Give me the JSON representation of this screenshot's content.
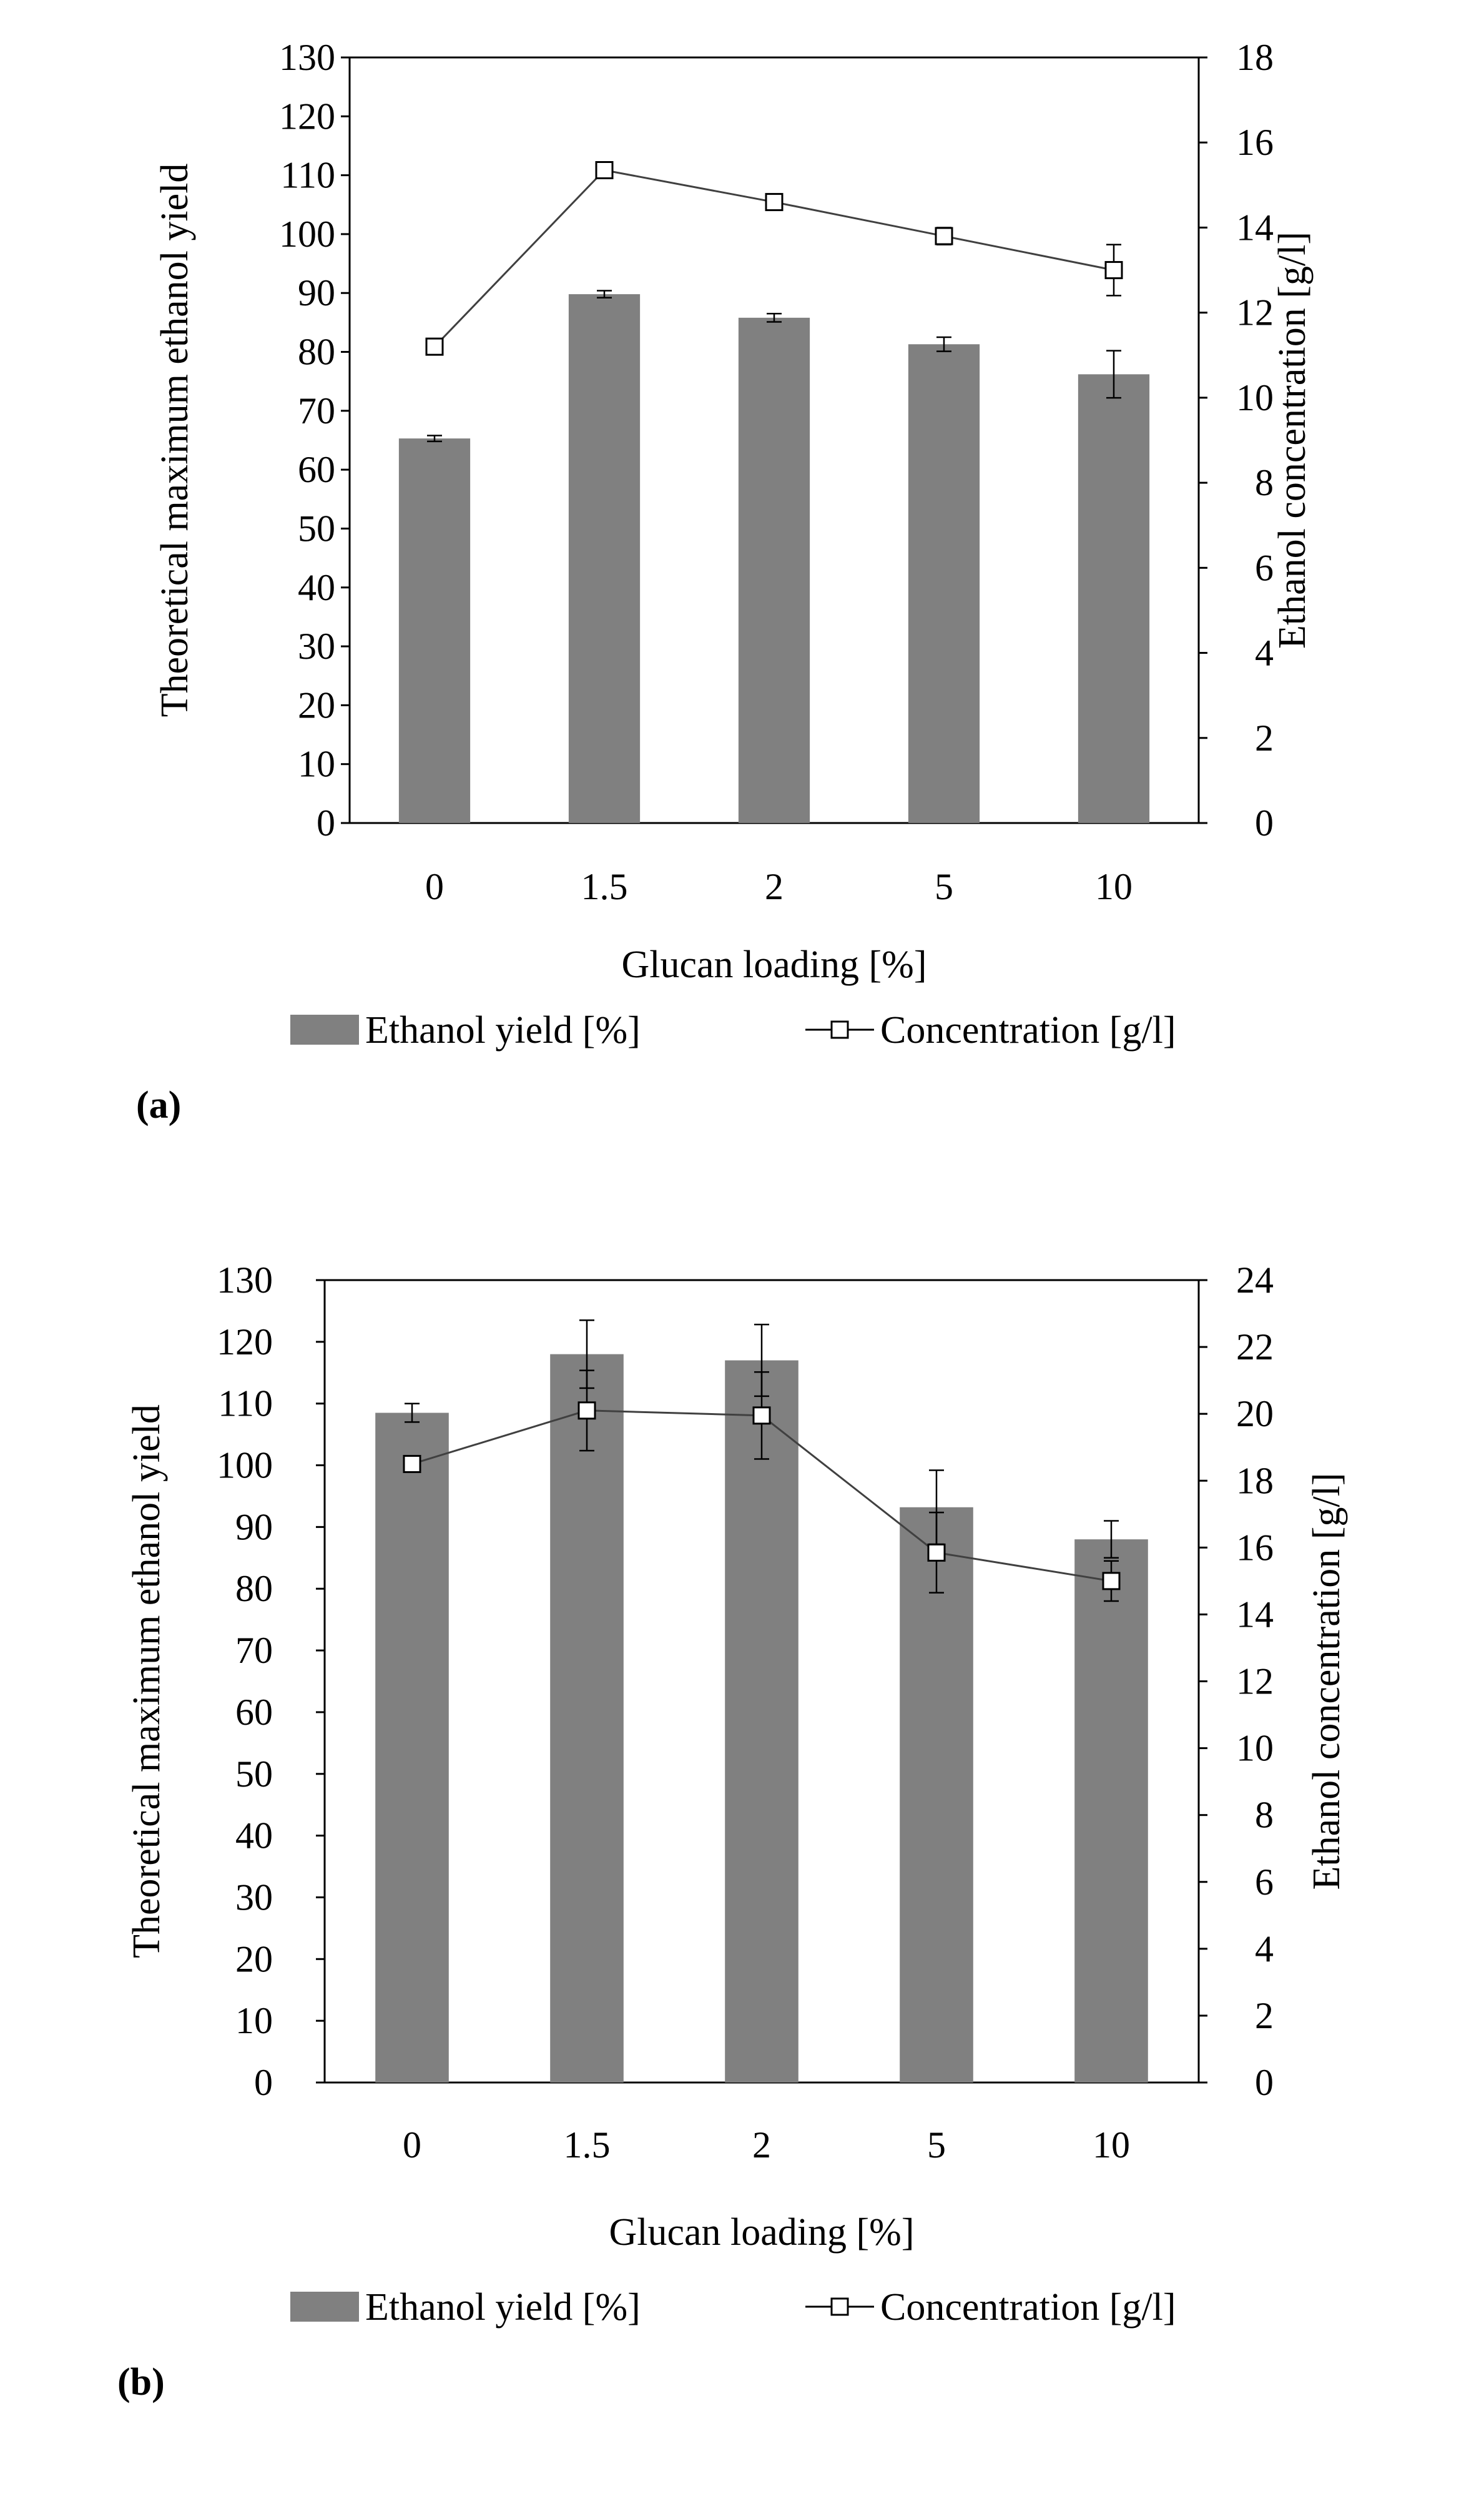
{
  "chart_data": [
    {
      "type": "bar",
      "panel_label": "(a)",
      "categories": [
        "0",
        "1.5",
        "2",
        "5",
        "10"
      ],
      "xlabel": "Glucan loading [%]",
      "ylabel": "Theoretical  maximum ethanol yield",
      "y2label": "Ethanol concentration [g/l]",
      "ylim": [
        0,
        130
      ],
      "y2lim": [
        0,
        18
      ],
      "yticks": [
        "0",
        "10",
        "20",
        "30",
        "40",
        "50",
        "60",
        "70",
        "80",
        "90",
        "100",
        "110",
        "120",
        "130"
      ],
      "y2ticks": [
        "0",
        "2",
        "4",
        "6",
        "8",
        "10",
        "12",
        "14",
        "16",
        "18"
      ],
      "legend_position": "bottom",
      "series": [
        {
          "name": "Ethanol yield [%]",
          "kind": "bar",
          "axis": "left",
          "color": "#808080",
          "values": [
            65.3,
            89.8,
            85.8,
            81.3,
            76.2
          ],
          "errors": [
            0.5,
            0.6,
            0.7,
            1.2,
            4.0
          ]
        },
        {
          "name": "Concentration [g/l]",
          "kind": "line",
          "axis": "right",
          "color": "#404040",
          "values": [
            11.2,
            15.35,
            14.6,
            13.8,
            13.0
          ],
          "errors": [
            0.1,
            0.1,
            0.1,
            0.2,
            0.6
          ]
        }
      ]
    },
    {
      "type": "bar",
      "panel_label": "(b)",
      "categories": [
        "0",
        "1.5",
        "2",
        "5",
        "10"
      ],
      "xlabel": "Glucan loading [%]",
      "ylabel": "Theoretical  maximum ethanol yield",
      "y2label": "Ethanol concentration [g/l]",
      "ylim": [
        0,
        130
      ],
      "y2lim": [
        0,
        24
      ],
      "yticks": [
        "0",
        "10",
        "20",
        "30",
        "40",
        "50",
        "60",
        "70",
        "80",
        "90",
        "100",
        "110",
        "120",
        "130"
      ],
      "y2ticks": [
        "0",
        "2",
        "4",
        "6",
        "8",
        "10",
        "12",
        "14",
        "16",
        "18",
        "20",
        "22",
        "24"
      ],
      "legend_position": "bottom",
      "series": [
        {
          "name": "Ethanol yield [%]",
          "kind": "bar",
          "axis": "left",
          "color": "#808080",
          "values": [
            108.5,
            118.0,
            117.0,
            93.2,
            88.0
          ],
          "errors": [
            1.5,
            5.5,
            5.8,
            6.0,
            3.0
          ]
        },
        {
          "name": "Concentration [g/l]",
          "kind": "line",
          "axis": "right",
          "color": "#404040",
          "values": [
            18.5,
            20.1,
            19.95,
            15.85,
            15.0
          ],
          "errors": [
            0.1,
            1.2,
            1.3,
            1.2,
            0.6
          ]
        }
      ]
    }
  ]
}
